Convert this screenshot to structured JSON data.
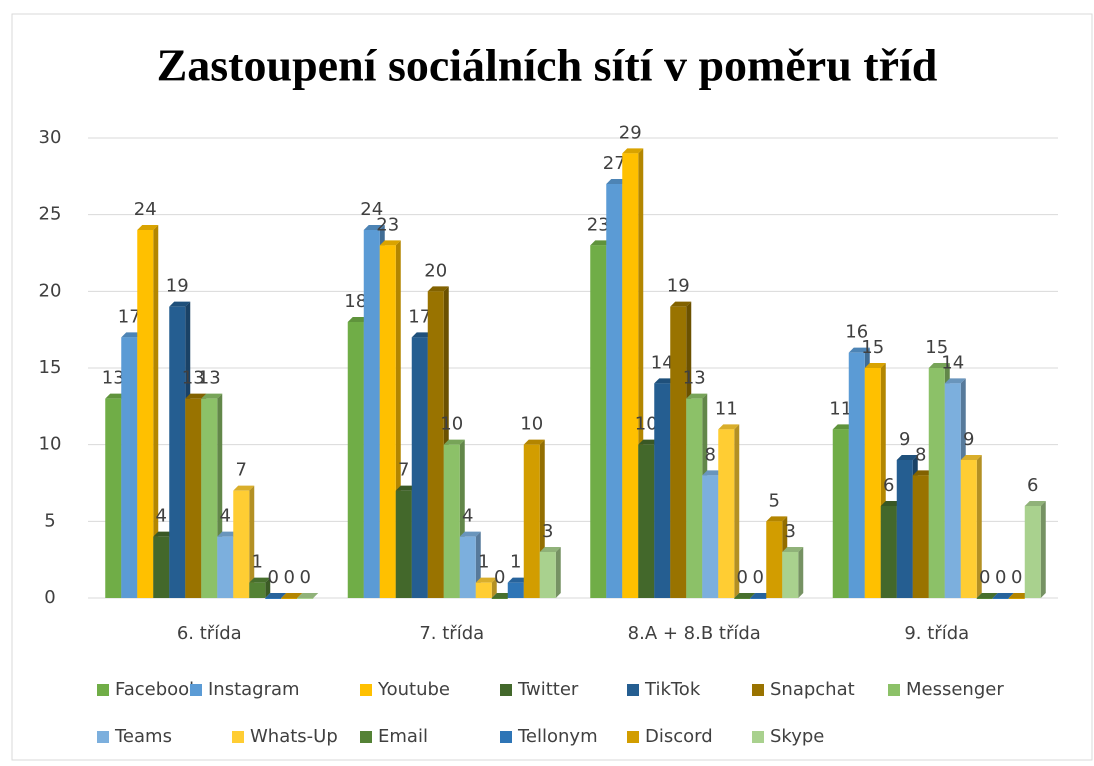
{
  "chart_data": {
    "type": "bar",
    "title": "Zastoupení sociálních sítí v poměru tříd",
    "categories": [
      "6. třída",
      "7. třída",
      "8.A + 8.B třída",
      "9. třída"
    ],
    "series": [
      {
        "name": "Facebook",
        "color": "#70ad47",
        "values": [
          13,
          18,
          23,
          11
        ]
      },
      {
        "name": "Instagram",
        "color": "#5b9bd5",
        "values": [
          17,
          24,
          27,
          16
        ]
      },
      {
        "name": "Youtube",
        "color": "#ffc000",
        "values": [
          24,
          23,
          29,
          15
        ]
      },
      {
        "name": "Twitter",
        "color": "#43682b",
        "values": [
          4,
          7,
          10,
          6
        ]
      },
      {
        "name": "TikTok",
        "color": "#255e91",
        "values": [
          19,
          17,
          14,
          9
        ]
      },
      {
        "name": "Snapchat",
        "color": "#997300",
        "values": [
          13,
          20,
          19,
          8
        ]
      },
      {
        "name": "Messenger",
        "color": "#8cc168",
        "values": [
          13,
          10,
          13,
          15
        ]
      },
      {
        "name": "Teams",
        "color": "#7cafdd",
        "values": [
          4,
          4,
          8,
          14
        ]
      },
      {
        "name": "Whats-Up",
        "color": "#ffcd33",
        "values": [
          7,
          1,
          11,
          9
        ]
      },
      {
        "name": "Email",
        "color": "#548235",
        "values": [
          1,
          0,
          0,
          0
        ]
      },
      {
        "name": "Tellonym",
        "color": "#2e75b6",
        "values": [
          0,
          1,
          0,
          0
        ]
      },
      {
        "name": "Discord",
        "color": "#d29d00",
        "values": [
          0,
          10,
          5,
          0
        ]
      },
      {
        "name": "Skype",
        "color": "#a9d18e",
        "values": [
          0,
          3,
          3,
          6
        ]
      }
    ],
    "ylim": [
      0,
      30
    ],
    "yticks": [
      0,
      5,
      10,
      15,
      20,
      25,
      30
    ],
    "grid": true,
    "legend": "bottom"
  }
}
